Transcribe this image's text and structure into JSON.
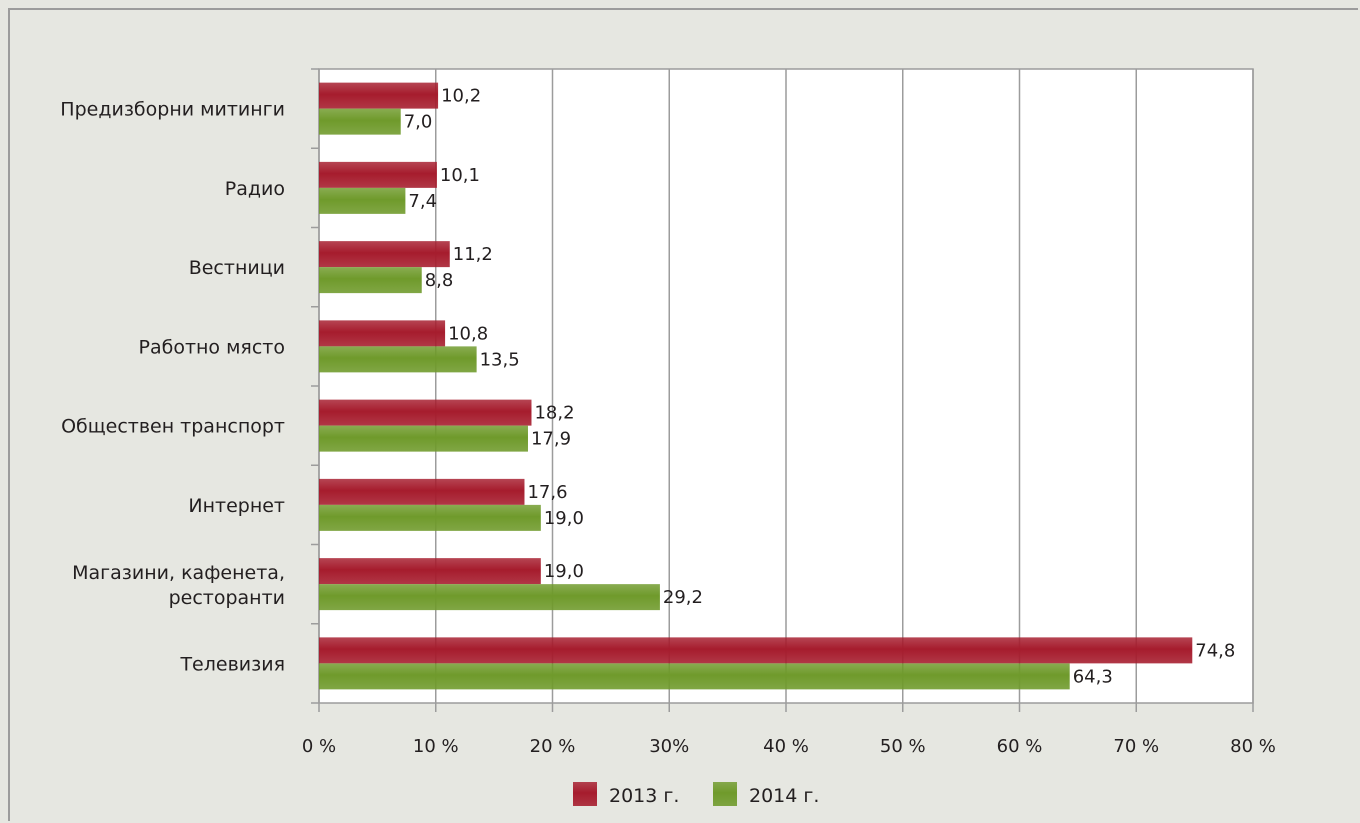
{
  "chart_data": {
    "type": "bar",
    "orientation": "horizontal",
    "categories": [
      "Предизборни митинги",
      "Радио",
      "Вестници",
      "Работно място",
      "Обществен транспорт",
      "Интернет",
      "Магазини, кафенета, ресторанти",
      "Телевизия"
    ],
    "series": [
      {
        "name": "2013 г.",
        "color": "#a61c2d",
        "values": [
          10.2,
          10.1,
          11.2,
          10.8,
          18.2,
          17.6,
          19.0,
          74.8
        ],
        "labels": [
          "10,2",
          "10,1",
          "11,2",
          "10,8",
          "18,2",
          "17,6",
          "19,0",
          "74,8"
        ]
      },
      {
        "name": "2014 г.",
        "color": "#6f9a2b",
        "values": [
          7.0,
          7.4,
          8.8,
          13.5,
          17.9,
          19.0,
          29.2,
          64.3
        ],
        "labels": [
          "7,0",
          "7,4",
          "8,8",
          "13,5",
          "17,9",
          "19,0",
          "29,2",
          "64,3"
        ]
      }
    ],
    "xlim": [
      0,
      80
    ],
    "xticks": [
      0,
      10,
      20,
      30,
      40,
      50,
      60,
      70,
      80
    ],
    "xtick_labels": [
      "0 %",
      "10 %",
      "20 %",
      "30%",
      "40 %",
      "50 %",
      "60 %",
      "70 %",
      "80 %"
    ],
    "grid": true,
    "legend_position": "bottom"
  }
}
